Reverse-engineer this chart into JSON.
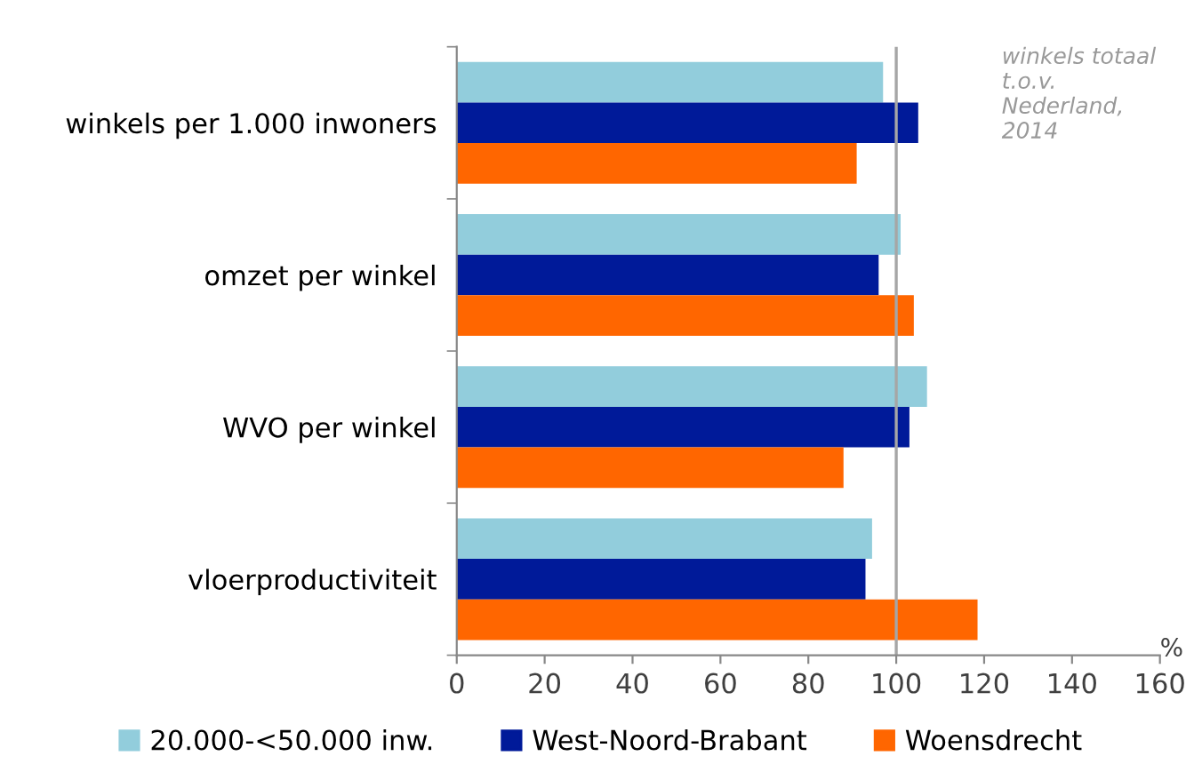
{
  "chart_data": {
    "type": "bar",
    "orientation": "horizontal",
    "categories": [
      "winkels per 1.000 inwoners",
      "omzet per winkel",
      "WVO per winkel",
      "vloerproductiviteit"
    ],
    "series": [
      {
        "name": "20.000-<50.000 inw.",
        "color": "#92cddc",
        "values": [
          97,
          101,
          107,
          94.5
        ]
      },
      {
        "name": "West-Noord-Brabant",
        "color": "#001a99",
        "values": [
          105,
          96,
          103,
          93
        ]
      },
      {
        "name": "Woensdrecht",
        "color": "#ff6600",
        "values": [
          91,
          104,
          88,
          118.5
        ]
      }
    ],
    "xlim": [
      0,
      160
    ],
    "xticks": [
      0,
      20,
      40,
      60,
      80,
      100,
      120,
      140,
      160
    ],
    "xlabel": "%",
    "ref_lines": [
      {
        "axis": "x",
        "value": 100,
        "color": "#a6a6a6"
      }
    ],
    "annotations": [
      "winkels totaal\nt.o.v.\nNederland,\n2014"
    ],
    "grid": false,
    "legend": "bottom"
  }
}
